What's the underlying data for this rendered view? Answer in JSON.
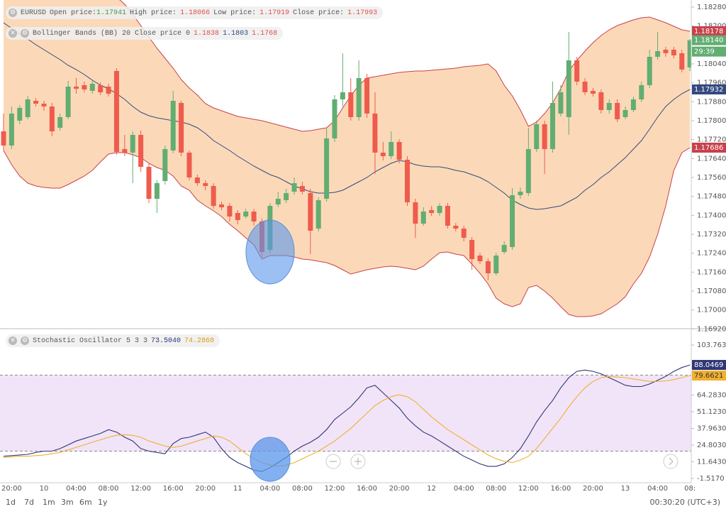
{
  "chart_data": [
    {
      "type": "candlestick",
      "header": {
        "symbol": "EURUSD",
        "open_label": "Open price:",
        "open": "1.17941",
        "high_label": "High price:",
        "high": "1.18066",
        "low_label": "Low price:",
        "low": "1.17919",
        "close_label": "Close price:",
        "close": "1.17993"
      },
      "categories": [
        null,
        "20:00",
        null,
        null,
        null,
        "10",
        null,
        null,
        null,
        "04:00",
        null,
        null,
        null,
        "08:00",
        null,
        null,
        null,
        "12:00",
        null,
        null,
        null,
        "16:00",
        null,
        null,
        null,
        "20:00",
        null,
        null,
        null,
        "11",
        null,
        null,
        null,
        "04:00",
        null,
        null,
        null,
        "08:00",
        null,
        null,
        null,
        "12:00",
        null,
        null,
        null,
        "16:00",
        null,
        null,
        null,
        "20:00",
        null,
        null,
        null,
        "12",
        null,
        null,
        null,
        "04:00",
        null,
        null,
        null,
        "08:00",
        null,
        null,
        null,
        "12:00",
        null,
        null,
        null,
        "16:00",
        null,
        null,
        null,
        "20:00",
        null,
        null,
        null,
        "13",
        null,
        null,
        null,
        "04:00",
        null,
        null,
        null,
        "08:"
      ],
      "open": [
        1.17755,
        1.17695,
        1.178,
        1.17815,
        1.17884,
        1.17872,
        1.1786,
        1.1777,
        1.17815,
        1.17944,
        1.1795,
        1.17926,
        1.1795,
        1.17944,
        1.1801,
        1.1768,
        1.17665,
        1.1774,
        1.17605,
        1.1747,
        1.17545,
        1.17674,
        1.17875,
        1.17665,
        1.1756,
        1.17536,
        1.17524,
        1.17446,
        1.1744,
        1.1741,
        1.17395,
        1.17416,
        1.17374,
        1.17254,
        1.17446,
        1.17464,
        1.175,
        1.17524,
        1.17494,
        1.17344,
        1.1747,
        1.17725,
        1.1789,
        1.1792,
        1.17815,
        1.1798,
        1.1783,
        1.17665,
        1.1765,
        1.1771,
        1.17635,
        1.17455,
        1.17365,
        1.17422,
        1.1741,
        1.1744,
        1.17356,
        1.17344,
        1.17296,
        1.1723,
        1.17206,
        1.17155,
        1.17245,
        1.17266,
        1.17485,
        1.17494,
        1.1768,
        1.17785,
        1.1768,
        1.1783,
        1.17815,
        1.18055,
        1.17965,
        1.17926,
        1.1792,
        1.17845,
        1.17875,
        1.17815,
        1.17845,
        1.1789,
        1.1795,
        1.1807,
        1.181,
        1.181,
        1.18085,
        1.18025
      ],
      "high": [
        1.1783,
        1.1786,
        1.17866,
        1.17905,
        1.17896,
        1.17884,
        1.17875,
        1.1783,
        1.17968,
        1.1798,
        1.17965,
        1.17974,
        1.17962,
        1.17956,
        1.18022,
        1.1774,
        1.17755,
        1.17758,
        1.1762,
        1.17548,
        1.17695,
        1.17926,
        1.17884,
        1.17674,
        1.17572,
        1.17548,
        1.17536,
        1.17458,
        1.17452,
        1.17422,
        1.17428,
        1.17428,
        1.17386,
        1.17452,
        1.175,
        1.17512,
        1.1756,
        1.17542,
        1.17512,
        1.17476,
        1.1777,
        1.17908,
        1.18085,
        1.1798,
        1.18055,
        1.17998,
        1.1792,
        1.1771,
        1.17755,
        1.17722,
        1.1765,
        1.1747,
        1.17434,
        1.1744,
        1.17452,
        1.17452,
        1.17368,
        1.17356,
        1.17308,
        1.17242,
        1.17218,
        1.17242,
        1.1729,
        1.17515,
        1.17518,
        1.1777,
        1.178,
        1.178,
        1.17965,
        1.1795,
        1.18175,
        1.1807,
        1.1798,
        1.17938,
        1.17932,
        1.1789,
        1.1789,
        1.1786,
        1.17902,
        1.17965,
        1.181,
        1.18175,
        1.18112,
        1.18112,
        1.181,
        1.18145
      ],
      "low": [
        1.17674,
        1.1768,
        1.17785,
        1.17806,
        1.1786,
        1.17842,
        1.17734,
        1.17758,
        1.17806,
        1.17914,
        1.1792,
        1.17914,
        1.17908,
        1.17902,
        1.17656,
        1.1765,
        1.17536,
        1.17584,
        1.17452,
        1.1741,
        1.1753,
        1.17662,
        1.1765,
        1.17548,
        1.17524,
        1.17506,
        1.17428,
        1.17422,
        1.17374,
        1.17362,
        1.17386,
        1.17356,
        1.17224,
        1.17242,
        1.17434,
        1.17452,
        1.17488,
        1.17488,
        1.17236,
        1.17332,
        1.17458,
        1.1771,
        1.1786,
        1.178,
        1.178,
        1.17812,
        1.17575,
        1.17632,
        1.17638,
        1.1762,
        1.1744,
        1.17305,
        1.17356,
        1.17398,
        1.17398,
        1.17344,
        1.17332,
        1.1729,
        1.1717,
        1.17194,
        1.17125,
        1.17146,
        1.17236,
        1.17254,
        1.1747,
        1.17482,
        1.17668,
        1.17575,
        1.17665,
        1.17818,
        1.1774,
        1.1795,
        1.17908,
        1.17902,
        1.1783,
        1.1783,
        1.17794,
        1.17806,
        1.17836,
        1.17878,
        1.17938,
        1.18058,
        1.1807,
        1.18064,
        1.18004,
        1.1801
      ],
      "close": [
        1.17695,
        1.1783,
        1.17854,
        1.1789,
        1.17872,
        1.1786,
        1.17755,
        1.17815,
        1.17944,
        1.17935,
        1.17932,
        1.17956,
        1.1792,
        1.17914,
        1.17668,
        1.17665,
        1.1774,
        1.17605,
        1.1747,
        1.17536,
        1.1768,
        1.17884,
        1.17665,
        1.1756,
        1.17536,
        1.17524,
        1.1744,
        1.17434,
        1.17395,
        1.1738,
        1.17416,
        1.17374,
        1.17245,
        1.1744,
        1.1747,
        1.17494,
        1.17536,
        1.175,
        1.17335,
        1.17464,
        1.17725,
        1.1789,
        1.1792,
        1.17815,
        1.1798,
        1.1783,
        1.17665,
        1.1765,
        1.1771,
        1.17635,
        1.17455,
        1.17365,
        1.17416,
        1.1741,
        1.1744,
        1.17356,
        1.17344,
        1.17305,
        1.17215,
        1.17206,
        1.17155,
        1.1723,
        1.17275,
        1.17485,
        1.175,
        1.1768,
        1.17785,
        1.1768,
        1.17875,
        1.1792,
        1.18055,
        1.17965,
        1.1792,
        1.17914,
        1.17845,
        1.17875,
        1.17806,
        1.17845,
        1.1789,
        1.1795,
        1.1807,
        1.18094,
        1.18085,
        1.18076,
        1.18016,
        1.1814
      ],
      "up_color": "#62ad72",
      "down_color": "#ef5b4c",
      "last_close_label": "1.18140",
      "countdown": "29:39",
      "bands": {
        "name": "Bollinger Bands (BB) 20 Close price 0",
        "legend_values": [
          "1.1838",
          "1.1803",
          "1.1768"
        ],
        "fill": "#fbd9b8",
        "edge_color": "#c8414b",
        "mid_color": "#34497f",
        "upper": [
          1.18544,
          1.18532,
          1.1852,
          1.18508,
          1.1849,
          1.18478,
          1.18466,
          1.18448,
          1.18436,
          1.18424,
          1.18406,
          1.18388,
          1.1837,
          1.18352,
          1.18322,
          1.18292,
          1.1825,
          1.18202,
          1.18154,
          1.18106,
          1.18064,
          1.18022,
          1.17974,
          1.17938,
          1.17908,
          1.17872,
          1.17854,
          1.17842,
          1.1783,
          1.17818,
          1.17812,
          1.17806,
          1.178,
          1.17791,
          1.17782,
          1.17773,
          1.17764,
          1.17755,
          1.17758,
          1.17764,
          1.1777,
          1.178,
          1.17854,
          1.17905,
          1.1795,
          1.1798,
          1.17986,
          1.17992,
          1.17998,
          1.18004,
          1.18007,
          1.1801,
          1.1801,
          1.18013,
          1.18016,
          1.18019,
          1.18022,
          1.18028,
          1.18031,
          1.18034,
          1.1804,
          1.1801,
          1.1795,
          1.17905,
          1.17845,
          1.17776,
          1.17794,
          1.1783,
          1.17875,
          1.17935,
          1.1801,
          1.18055,
          1.18094,
          1.1813,
          1.1816,
          1.18184,
          1.18202,
          1.18214,
          1.18226,
          1.18235,
          1.18238,
          1.18226,
          1.18214,
          1.18199,
          1.18184,
          1.18178
        ],
        "middle": [
          1.18214,
          1.1819,
          1.18166,
          1.18145,
          1.18121,
          1.181,
          1.18079,
          1.18058,
          1.18034,
          1.18016,
          1.17995,
          1.17971,
          1.1795,
          1.17935,
          1.17914,
          1.1789,
          1.1786,
          1.17836,
          1.17821,
          1.17812,
          1.17806,
          1.178,
          1.17794,
          1.17785,
          1.1777,
          1.17746,
          1.17716,
          1.17695,
          1.17674,
          1.1765,
          1.17629,
          1.17608,
          1.1759,
          1.17572,
          1.1756,
          1.17542,
          1.17524,
          1.17512,
          1.175,
          1.17494,
          1.17494,
          1.17497,
          1.17506,
          1.17524,
          1.17542,
          1.1756,
          1.17584,
          1.17602,
          1.1762,
          1.17632,
          1.17626,
          1.17614,
          1.17608,
          1.17605,
          1.17605,
          1.17599,
          1.1759,
          1.17584,
          1.17572,
          1.1756,
          1.17542,
          1.17518,
          1.17494,
          1.17464,
          1.17446,
          1.17431,
          1.17425,
          1.17428,
          1.17434,
          1.1744,
          1.17458,
          1.17476,
          1.17506,
          1.1753,
          1.1756,
          1.17584,
          1.17614,
          1.17644,
          1.1768,
          1.17716,
          1.17764,
          1.17815,
          1.1786,
          1.1789,
          1.17914,
          1.17932
        ],
        "lower": [
          1.17674,
          1.17614,
          1.17566,
          1.17536,
          1.17524,
          1.17518,
          1.17515,
          1.17515,
          1.1753,
          1.17548,
          1.17566,
          1.1759,
          1.17626,
          1.17659,
          1.17665,
          1.17665,
          1.17656,
          1.17644,
          1.1762,
          1.17602,
          1.1759,
          1.17566,
          1.17524,
          1.17506,
          1.17464,
          1.1744,
          1.17419,
          1.17395,
          1.17362,
          1.17335,
          1.17305,
          1.17275,
          1.17215,
          1.1723,
          1.1723,
          1.1723,
          1.17224,
          1.17215,
          1.17212,
          1.17206,
          1.172,
          1.17188,
          1.1717,
          1.17152,
          1.17161,
          1.1717,
          1.17176,
          1.17182,
          1.17185,
          1.17182,
          1.17176,
          1.1717,
          1.17185,
          1.17215,
          1.17242,
          1.17245,
          1.17236,
          1.1723,
          1.17194,
          1.17155,
          1.1711,
          1.1705,
          1.17026,
          1.17014,
          1.17026,
          1.17095,
          1.17104,
          1.1708,
          1.1705,
          1.17014,
          1.16981,
          1.16972,
          1.16972,
          1.16975,
          1.16984,
          1.17005,
          1.17026,
          1.17056,
          1.1711,
          1.17155,
          1.17224,
          1.1732,
          1.1744,
          1.1759,
          1.17665,
          1.17686
        ]
      },
      "ylim": [
        1.16921,
        1.1831
      ],
      "yticks": [
        {
          "value": 1.1828,
          "label": "1.18280"
        },
        {
          "value": 1.182,
          "label": "1.18200"
        },
        {
          "value": 1.1804,
          "label": "1.18040"
        },
        {
          "value": 1.1796,
          "label": "1.17960"
        },
        {
          "value": 1.1788,
          "label": "1.17880"
        },
        {
          "value": 1.178,
          "label": "1.17800"
        },
        {
          "value": 1.1772,
          "label": "1.17720"
        },
        {
          "value": 1.1764,
          "label": "1.17640"
        },
        {
          "value": 1.1756,
          "label": "1.17560"
        },
        {
          "value": 1.1748,
          "label": "1.17480"
        },
        {
          "value": 1.174,
          "label": "1.17400"
        },
        {
          "value": 1.1732,
          "label": "1.17320"
        },
        {
          "value": 1.1724,
          "label": "1.17240"
        },
        {
          "value": 1.1716,
          "label": "1.17160"
        },
        {
          "value": 1.1708,
          "label": "1.17080"
        },
        {
          "value": 1.17,
          "label": "1.17000"
        },
        {
          "value": 1.1692,
          "label": "1.16920"
        }
      ]
    },
    {
      "type": "stochastic",
      "name": "Stochastic Oscillator 5 3 3",
      "series": [
        {
          "color": "#2f3674",
          "legend_value": "73.5040",
          "values": [
            16,
            16.5,
            17,
            17.5,
            19,
            20,
            20,
            22,
            25,
            28,
            30,
            32,
            34,
            37,
            35,
            31,
            28,
            22,
            20,
            19,
            18,
            26,
            30,
            31,
            33,
            35,
            31,
            22,
            15,
            11,
            8,
            5,
            4,
            7,
            11,
            15,
            20,
            24,
            27,
            31,
            37,
            45,
            50,
            55,
            62,
            70,
            72,
            66,
            60,
            54,
            46,
            40,
            35,
            32,
            28,
            24,
            20,
            16,
            13,
            10,
            8,
            8,
            10,
            15,
            22,
            32,
            43,
            52,
            60,
            70,
            78,
            83,
            84,
            83,
            81,
            78,
            75,
            72,
            71,
            71,
            73,
            76,
            79,
            83,
            86,
            88.0469
          ]
        },
        {
          "color": "#f0b030",
          "legend_value": "74.2868",
          "values": [
            15,
            15.5,
            16,
            16,
            16.5,
            17,
            18,
            19,
            21,
            23,
            25,
            27,
            29,
            31,
            32.5,
            33,
            32.5,
            31,
            28,
            26,
            24,
            23,
            24,
            26,
            28,
            30,
            32,
            31,
            28,
            23,
            18,
            14,
            11,
            9,
            8,
            9,
            11,
            14,
            17,
            20,
            24,
            28,
            33,
            38,
            44,
            50,
            56,
            60,
            63,
            64.5,
            63,
            59,
            53,
            47,
            42,
            37,
            33,
            29,
            25,
            21,
            17,
            14,
            12,
            11,
            13,
            16,
            22,
            30,
            38,
            46,
            55,
            63,
            70,
            75,
            78,
            79,
            78.5,
            78,
            77,
            76,
            75,
            75,
            75.5,
            76.5,
            78,
            79.6621
          ]
        }
      ],
      "levels": [
        20,
        80
      ],
      "band_color": "#f1e4f8",
      "ylim": [
        -4.92,
        116.65
      ],
      "yticks": [
        {
          "value": 103.763,
          "label": "103.7630"
        },
        {
          "value": 64.283,
          "label": "64.2830"
        },
        {
          "value": 51.123,
          "label": "51.1230"
        },
        {
          "value": 37.963,
          "label": "37.9630"
        },
        {
          "value": 24.803,
          "label": "24.8030"
        },
        {
          "value": 11.643,
          "label": "11.6430"
        },
        {
          "value": -1.517,
          "label": "-1.5170"
        }
      ]
    }
  ],
  "toolbar": {
    "ranges": [
      "1d",
      "7d",
      "1m",
      "3m",
      "6m",
      "1y"
    ],
    "clock": "00:30:20 (UTC+3)"
  }
}
